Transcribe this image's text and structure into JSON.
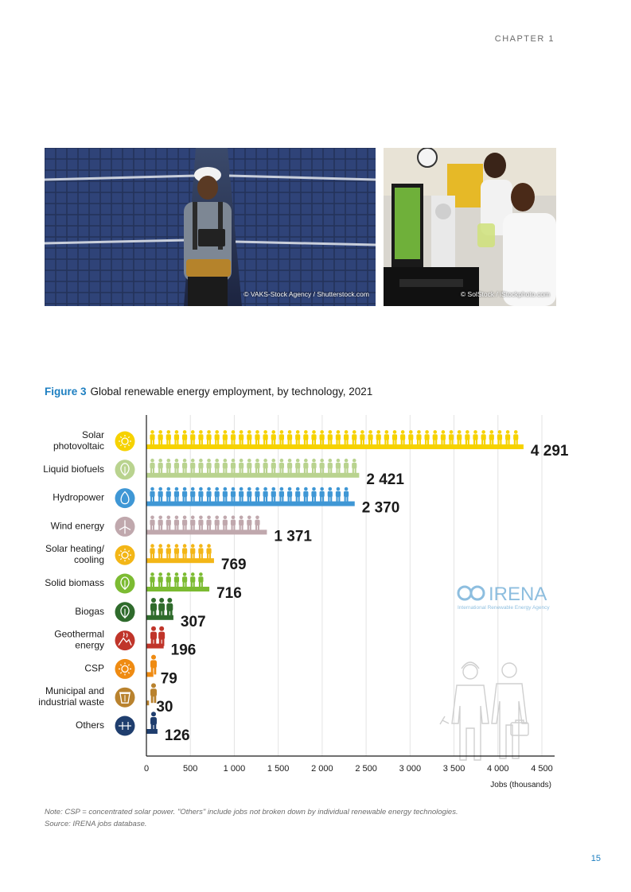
{
  "header": {
    "chapter": "CHAPTER 1"
  },
  "photos": [
    {
      "credit": "© VAKS-Stock Agency / Shutterstock.com"
    },
    {
      "credit": "© SolStock / iStockphoto.com"
    }
  ],
  "figure": {
    "label": "Figure 3",
    "caption": "Global renewable energy employment, by technology, 2021"
  },
  "watermark": {
    "name": "IRENA",
    "subtitle": "International Renewable Energy Agency"
  },
  "chart_data": {
    "type": "bar",
    "orientation": "horizontal",
    "title": "Global renewable energy employment, by technology, 2021",
    "xlabel": "Jobs (thousands)",
    "xlim": [
      0,
      4500
    ],
    "xticks": [
      "0",
      "500",
      "1 000",
      "1 500",
      "2 000",
      "2 500",
      "3 000",
      "3 500",
      "4 000",
      "4 500"
    ],
    "grid": true,
    "categories": [
      {
        "label": [
          "Solar",
          "photovoltaic"
        ],
        "value": 4291,
        "value_label": "4 291",
        "color": "#f6d200",
        "icon": "sun-icon"
      },
      {
        "label": [
          "Liquid biofuels"
        ],
        "value": 2421,
        "value_label": "2 421",
        "color": "#b9d38f",
        "icon": "leaf-icon"
      },
      {
        "label": [
          "Hydropower"
        ],
        "value": 2370,
        "value_label": "2 370",
        "color": "#3f97d5",
        "icon": "water-drop-icon"
      },
      {
        "label": [
          "Wind energy"
        ],
        "value": 1371,
        "value_label": "1 371",
        "color": "#c0a8ad",
        "icon": "wind-turbine-icon"
      },
      {
        "label": [
          "Solar heating/",
          "cooling"
        ],
        "value": 769,
        "value_label": "769",
        "color": "#f3b617",
        "icon": "sun-icon"
      },
      {
        "label": [
          "Solid biomass"
        ],
        "value": 716,
        "value_label": "716",
        "color": "#7cbb32",
        "icon": "leaf-icon"
      },
      {
        "label": [
          "Biogas"
        ],
        "value": 307,
        "value_label": "307",
        "color": "#2f6b2c",
        "icon": "leaf-icon"
      },
      {
        "label": [
          "Geothermal",
          "energy"
        ],
        "value": 196,
        "value_label": "196",
        "color": "#c0352a",
        "icon": "geothermal-icon"
      },
      {
        "label": [
          "CSP"
        ],
        "value": 79,
        "value_label": "79",
        "color": "#ef8b12",
        "icon": "sun-icon"
      },
      {
        "label": [
          "Municipal and",
          "industrial waste"
        ],
        "value": 30,
        "value_label": "30",
        "color": "#b9822e",
        "icon": "waste-bin-icon"
      },
      {
        "label": [
          "Others"
        ],
        "value": 126,
        "value_label": "126",
        "color": "#1f3e6e",
        "icon": "others-icon"
      }
    ]
  },
  "notes": {
    "note": "Note: CSP = concentrated solar power. \"Others\" include jobs not broken down by individual renewable energy technologies.",
    "source": "Source: IRENA jobs database."
  },
  "page_number": "15"
}
